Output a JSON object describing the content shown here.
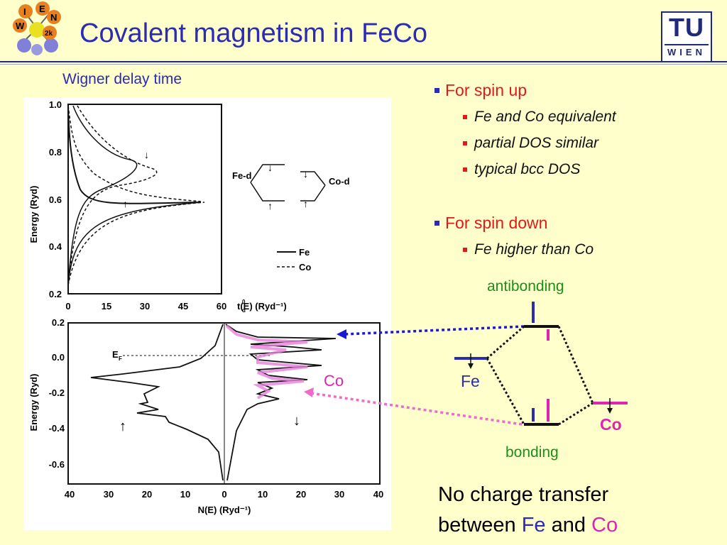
{
  "slide": {
    "title": "Covalent magnetism in FeCo",
    "subtitle": "Wigner delay time"
  },
  "logos": {
    "left_letters": [
      "I",
      "E",
      "W",
      "N",
      "2k"
    ],
    "right_top": "TU",
    "right_bottom": "WIEN"
  },
  "figure": {
    "top_plot": {
      "ylabel": "Energy (Ryd)",
      "yticks": [
        "1.0",
        "0.8",
        "0.6",
        "0.4",
        "0.2"
      ],
      "xticks": [
        "0",
        "15",
        "30",
        "45",
        "60"
      ],
      "xlabel": "t(E) (Ryd⁻¹)",
      "xlabel_sup": "0",
      "xlabel_sub": "d",
      "fe_d": "Fe-d",
      "co_d": "Co-d",
      "legend_fe": "Fe",
      "legend_co": "Co"
    },
    "bottom_plot": {
      "ylabel": "Energy (Ryd)",
      "yticks": [
        "0.2",
        "0.0",
        "-0.2",
        "-0.4",
        "-0.6"
      ],
      "xticks": [
        "40",
        "30",
        "20",
        "10",
        "0",
        "10",
        "20",
        "30",
        "40"
      ],
      "xlabel": "N(E) (Ryd⁻¹)",
      "ef_label": "E",
      "ef_sub": "F"
    },
    "co_label": "Co"
  },
  "bullets": [
    {
      "text": "For spin up",
      "items": [
        "Fe and Co equivalent",
        "partial DOS similar",
        "typical bcc DOS"
      ]
    },
    {
      "text": "For spin down",
      "items": [
        "Fe higher than Co"
      ]
    }
  ],
  "diagram": {
    "antibonding": "antibonding",
    "bonding": "bonding",
    "fe": "Fe",
    "co": "Co"
  },
  "conclusion": {
    "line1": "No charge transfer",
    "line2_pre": "between ",
    "fe": "Fe",
    "mid": " and ",
    "co": "Co"
  },
  "colors": {
    "background": "#ffffcc",
    "title": "#2b2bb5",
    "bullet_level1": "#e0191b",
    "fe": "#2b2bb5",
    "co": "#e023b0",
    "green": "#1a8f1a"
  }
}
